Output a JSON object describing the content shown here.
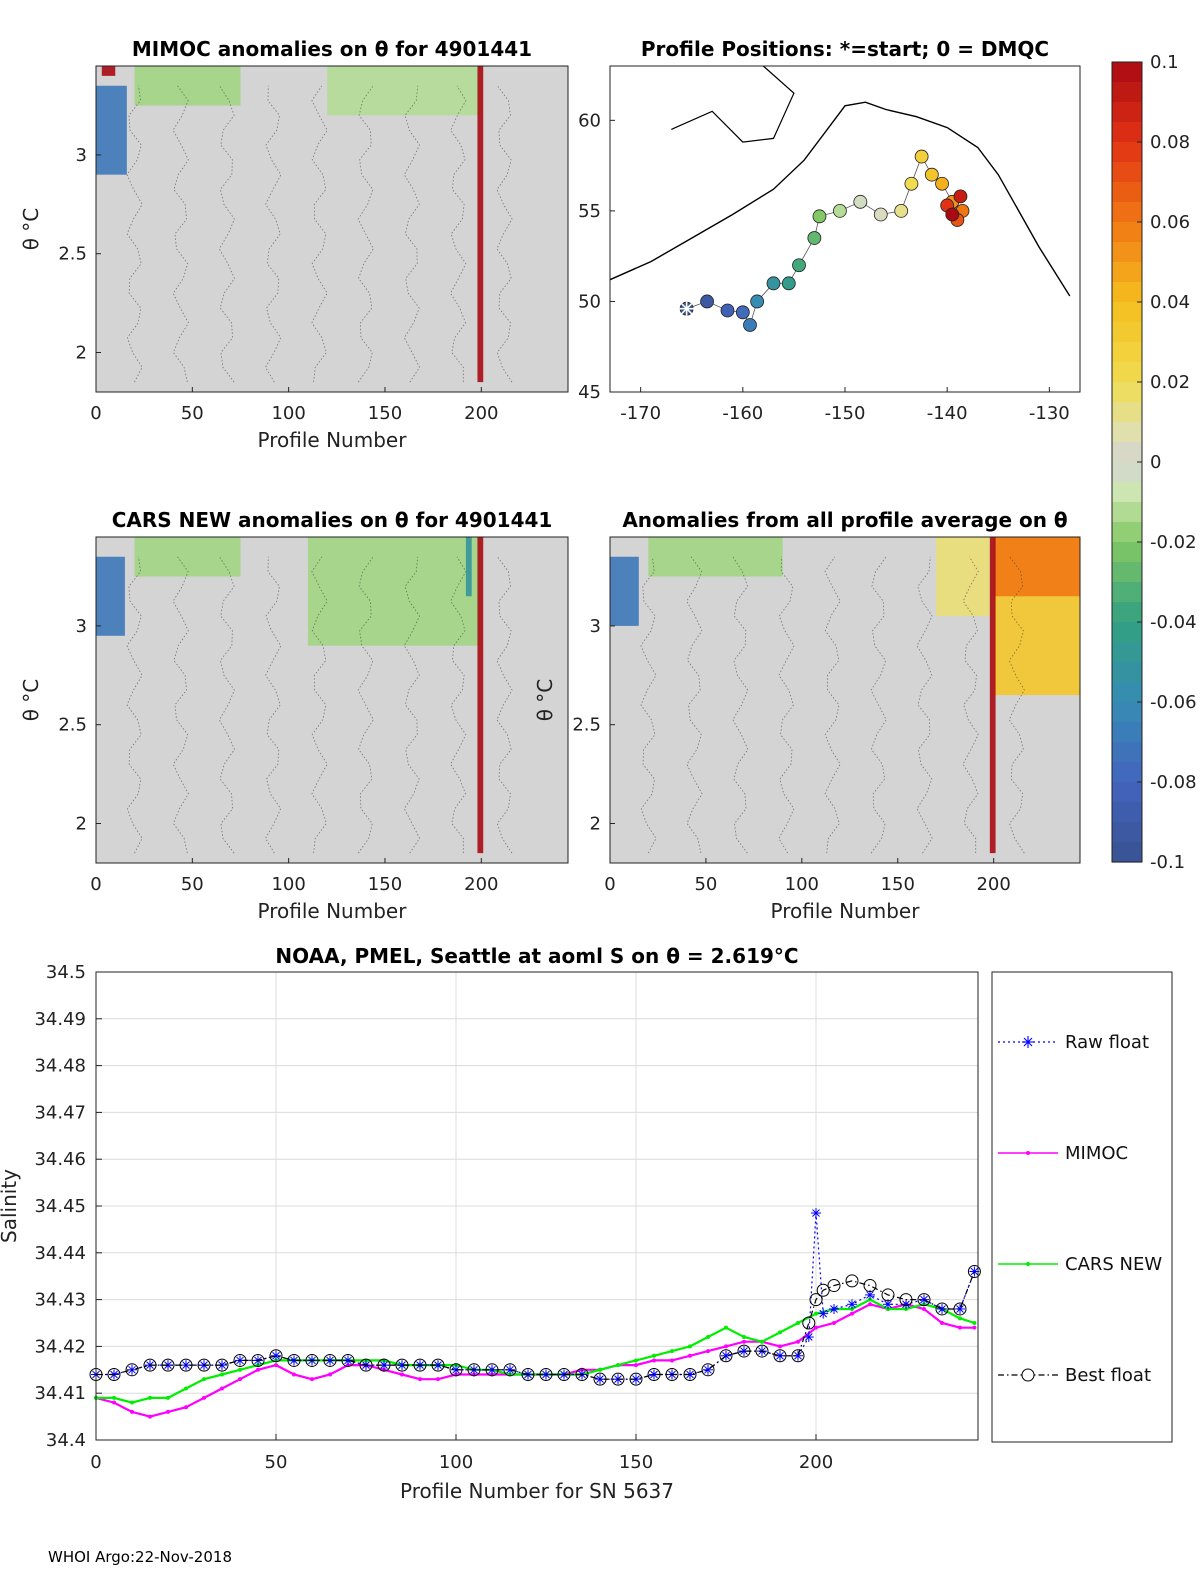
{
  "footer": "WHOI Argo:22-Nov-2018",
  "chart_data": [
    {
      "id": "mimoc",
      "type": "heatmap",
      "title": "MIMOC anomalies on θ  for 4901441",
      "xlabel": "Profile Number",
      "ylabel": "θ °C",
      "xlim": [
        0,
        245
      ],
      "ylim": [
        1.8,
        3.45
      ],
      "xticks": [
        "0",
        "50",
        "100",
        "150",
        "200"
      ],
      "xtick_values": [
        0,
        50,
        100,
        150,
        200
      ],
      "yticks": [
        "2",
        "2.5",
        "3"
      ],
      "ytick_values": [
        2,
        2.5,
        3
      ],
      "background_value": 0,
      "features": [
        {
          "x0": 0,
          "x1": 16,
          "y0": 2.9,
          "y1": 3.35,
          "value": -0.07
        },
        {
          "x0": 20,
          "x1": 75,
          "y0": 3.25,
          "y1": 3.45,
          "value": -0.015
        },
        {
          "x0": 120,
          "x1": 200,
          "y0": 3.2,
          "y1": 3.45,
          "value": -0.012
        },
        {
          "x0": 198,
          "x1": 201,
          "y0": 1.85,
          "y1": 3.45,
          "value": 0.1
        },
        {
          "x0": 3,
          "x1": 10,
          "y0": 3.4,
          "y1": 3.45,
          "value": 0.1
        }
      ]
    },
    {
      "id": "positions",
      "type": "scatter",
      "title": "Profile Positions: *=start; 0 = DMQC",
      "xlim": [
        -173,
        -127
      ],
      "ylim": [
        45,
        63
      ],
      "xticks": [
        "-170",
        "-160",
        "-150",
        "-140",
        "-130"
      ],
      "xtick_values": [
        -170,
        -160,
        -150,
        -140,
        -130
      ],
      "yticks": [
        "45",
        "50",
        "55",
        "60"
      ],
      "ytick_values": [
        45,
        50,
        55,
        60
      ],
      "start": {
        "lon": -165.5,
        "lat": 49.6
      },
      "track": [
        {
          "lon": -165.5,
          "lat": 49.6,
          "v": -0.1
        },
        {
          "lon": -163.5,
          "lat": 50.0,
          "v": -0.092
        },
        {
          "lon": -161.5,
          "lat": 49.5,
          "v": -0.084
        },
        {
          "lon": -160.0,
          "lat": 49.4,
          "v": -0.076
        },
        {
          "lon": -159.3,
          "lat": 48.7,
          "v": -0.068
        },
        {
          "lon": -158.6,
          "lat": 50.0,
          "v": -0.06
        },
        {
          "lon": -157.0,
          "lat": 51.0,
          "v": -0.052
        },
        {
          "lon": -155.5,
          "lat": 51.0,
          "v": -0.044
        },
        {
          "lon": -154.5,
          "lat": 52.0,
          "v": -0.036
        },
        {
          "lon": -153.0,
          "lat": 53.5,
          "v": -0.028
        },
        {
          "lon": -152.5,
          "lat": 54.7,
          "v": -0.02
        },
        {
          "lon": -150.5,
          "lat": 55.0,
          "v": -0.012
        },
        {
          "lon": -148.5,
          "lat": 55.5,
          "v": -0.004
        },
        {
          "lon": -146.5,
          "lat": 54.8,
          "v": 0.004
        },
        {
          "lon": -144.5,
          "lat": 55.0,
          "v": 0.012
        },
        {
          "lon": -143.5,
          "lat": 56.5,
          "v": 0.02
        },
        {
          "lon": -142.5,
          "lat": 58.0,
          "v": 0.028
        },
        {
          "lon": -141.5,
          "lat": 57.0,
          "v": 0.036
        },
        {
          "lon": -140.5,
          "lat": 56.5,
          "v": 0.044
        },
        {
          "lon": -139.5,
          "lat": 55.5,
          "v": 0.052
        },
        {
          "lon": -138.5,
          "lat": 55.0,
          "v": 0.06
        },
        {
          "lon": -139.0,
          "lat": 54.5,
          "v": 0.07
        },
        {
          "lon": -140.0,
          "lat": 55.3,
          "v": 0.08
        },
        {
          "lon": -138.7,
          "lat": 55.8,
          "v": 0.09
        },
        {
          "lon": -139.5,
          "lat": 54.8,
          "v": 0.1
        }
      ]
    },
    {
      "id": "cars",
      "type": "heatmap",
      "title": "CARS NEW anomalies on θ for 4901441",
      "xlabel": "Profile Number",
      "ylabel": "θ °C",
      "xlim": [
        0,
        245
      ],
      "ylim": [
        1.8,
        3.45
      ],
      "xticks": [
        "0",
        "50",
        "100",
        "150",
        "200"
      ],
      "xtick_values": [
        0,
        50,
        100,
        150,
        200
      ],
      "yticks": [
        "2",
        "2.5",
        "3"
      ],
      "ytick_values": [
        2,
        2.5,
        3
      ],
      "background_value": 0,
      "features": [
        {
          "x0": 0,
          "x1": 15,
          "y0": 2.95,
          "y1": 3.35,
          "value": -0.07
        },
        {
          "x0": 20,
          "x1": 75,
          "y0": 3.25,
          "y1": 3.45,
          "value": -0.015
        },
        {
          "x0": 110,
          "x1": 200,
          "y0": 2.9,
          "y1": 3.45,
          "value": -0.015
        },
        {
          "x0": 192,
          "x1": 195,
          "y0": 3.15,
          "y1": 3.45,
          "value": -0.05
        },
        {
          "x0": 198,
          "x1": 201,
          "y0": 1.85,
          "y1": 3.45,
          "value": 0.1
        }
      ]
    },
    {
      "id": "allavg",
      "type": "heatmap",
      "title": "Anomalies from all profile average on θ",
      "xlabel": "Profile Number",
      "ylabel": "θ °C",
      "xlim": [
        0,
        245
      ],
      "ylim": [
        1.8,
        3.45
      ],
      "xticks": [
        "0",
        "50",
        "100",
        "150",
        "200"
      ],
      "xtick_values": [
        0,
        50,
        100,
        150,
        200
      ],
      "yticks": [
        "2",
        "2.5",
        "3"
      ],
      "ytick_values": [
        2,
        2.5,
        3
      ],
      "background_value": 0,
      "features": [
        {
          "x0": 0,
          "x1": 15,
          "y0": 3.0,
          "y1": 3.35,
          "value": -0.07
        },
        {
          "x0": 20,
          "x1": 90,
          "y0": 3.25,
          "y1": 3.45,
          "value": -0.015
        },
        {
          "x0": 170,
          "x1": 198,
          "y0": 3.05,
          "y1": 3.45,
          "value": 0.015
        },
        {
          "x0": 200,
          "x1": 245,
          "y0": 2.65,
          "y1": 3.45,
          "value": 0.035
        },
        {
          "x0": 200,
          "x1": 245,
          "y0": 3.15,
          "y1": 3.45,
          "value": 0.06
        },
        {
          "x0": 198,
          "x1": 201,
          "y0": 1.85,
          "y1": 3.45,
          "value": 0.1
        }
      ]
    },
    {
      "id": "colorbar",
      "type": "colorbar",
      "limits": [
        -0.1,
        0.1
      ],
      "ticks": [
        "-0.1",
        "-0.08",
        "-0.06",
        "-0.04",
        "-0.02",
        "0",
        "0.02",
        "0.04",
        "0.06",
        "0.08",
        "0.1"
      ],
      "tick_values": [
        -0.1,
        -0.08,
        -0.06,
        -0.04,
        -0.02,
        0,
        0.02,
        0.04,
        0.06,
        0.08,
        0.1
      ]
    },
    {
      "id": "salinity",
      "type": "line",
      "title": "NOAA, PMEL, Seattle at aoml S on θ = 2.619°C",
      "xlabel": "Profile Number for SN 5637",
      "ylabel": "Salinity",
      "xlim": [
        0,
        245
      ],
      "ylim": [
        34.4,
        34.5
      ],
      "grid": true,
      "legend_position": "right outside",
      "xticks": [
        "0",
        "50",
        "100",
        "150",
        "200"
      ],
      "xtick_values": [
        0,
        50,
        100,
        150,
        200
      ],
      "yticks": [
        "34.4",
        "34.41",
        "34.42",
        "34.43",
        "34.44",
        "34.45",
        "34.46",
        "34.47",
        "34.48",
        "34.49",
        "34.5"
      ],
      "ytick_values": [
        34.4,
        34.41,
        34.42,
        34.43,
        34.44,
        34.45,
        34.46,
        34.47,
        34.48,
        34.49,
        34.5
      ],
      "series": [
        {
          "name": "Raw float",
          "color": "#0000ff",
          "x": [
            0,
            5,
            10,
            15,
            20,
            25,
            30,
            35,
            40,
            45,
            50,
            55,
            60,
            65,
            70,
            75,
            80,
            85,
            90,
            95,
            100,
            105,
            110,
            115,
            120,
            125,
            130,
            135,
            140,
            145,
            150,
            155,
            160,
            165,
            170,
            175,
            180,
            185,
            190,
            195,
            198,
            200,
            202,
            205,
            210,
            215,
            220,
            225,
            230,
            235,
            240,
            244
          ],
          "values": [
            34.414,
            34.414,
            34.415,
            34.416,
            34.416,
            34.416,
            34.416,
            34.416,
            34.417,
            34.417,
            34.418,
            34.417,
            34.417,
            34.417,
            34.417,
            34.416,
            34.416,
            34.416,
            34.416,
            34.416,
            34.415,
            34.415,
            34.415,
            34.415,
            34.414,
            34.414,
            34.414,
            34.414,
            34.413,
            34.413,
            34.413,
            34.414,
            34.414,
            34.414,
            34.415,
            34.418,
            34.419,
            34.419,
            34.418,
            34.418,
            34.422,
            34.4485,
            34.427,
            34.428,
            34.429,
            34.431,
            34.429,
            34.429,
            34.43,
            34.428,
            34.428,
            34.436
          ]
        },
        {
          "name": "MIMOC",
          "color": "#ff00ff",
          "x": [
            0,
            5,
            10,
            15,
            20,
            25,
            30,
            35,
            40,
            45,
            50,
            55,
            60,
            65,
            70,
            75,
            80,
            85,
            90,
            95,
            100,
            105,
            110,
            115,
            120,
            125,
            130,
            135,
            140,
            145,
            150,
            155,
            160,
            165,
            170,
            175,
            180,
            185,
            190,
            195,
            200,
            205,
            210,
            215,
            220,
            225,
            230,
            235,
            240,
            244
          ],
          "values": [
            34.409,
            34.408,
            34.406,
            34.405,
            34.406,
            34.407,
            34.409,
            34.411,
            34.413,
            34.415,
            34.416,
            34.414,
            34.413,
            34.414,
            34.416,
            34.416,
            34.415,
            34.414,
            34.413,
            34.413,
            34.414,
            34.414,
            34.414,
            34.414,
            34.414,
            34.414,
            34.414,
            34.415,
            34.415,
            34.416,
            34.416,
            34.417,
            34.417,
            34.418,
            34.419,
            34.42,
            34.421,
            34.421,
            34.42,
            34.421,
            34.424,
            34.425,
            34.427,
            34.429,
            34.428,
            34.429,
            34.428,
            34.425,
            34.424,
            34.424
          ]
        },
        {
          "name": "CARS NEW",
          "color": "#00ee00",
          "x": [
            0,
            5,
            10,
            15,
            20,
            25,
            30,
            35,
            40,
            45,
            50,
            55,
            60,
            65,
            70,
            75,
            80,
            85,
            90,
            95,
            100,
            105,
            110,
            115,
            120,
            125,
            130,
            135,
            140,
            145,
            150,
            155,
            160,
            165,
            170,
            175,
            180,
            185,
            190,
            195,
            200,
            205,
            210,
            215,
            220,
            225,
            230,
            235,
            240,
            244
          ],
          "values": [
            34.409,
            34.409,
            34.408,
            34.409,
            34.409,
            34.411,
            34.413,
            34.414,
            34.415,
            34.416,
            34.417,
            34.417,
            34.417,
            34.417,
            34.417,
            34.417,
            34.417,
            34.416,
            34.416,
            34.416,
            34.416,
            34.415,
            34.415,
            34.414,
            34.414,
            34.414,
            34.414,
            34.414,
            34.415,
            34.416,
            34.417,
            34.418,
            34.419,
            34.42,
            34.422,
            34.424,
            34.422,
            34.421,
            34.423,
            34.425,
            34.427,
            34.428,
            34.428,
            34.43,
            34.428,
            34.428,
            34.429,
            34.428,
            34.426,
            34.425
          ]
        },
        {
          "name": "Best float",
          "color": "#000000",
          "x": [
            0,
            5,
            10,
            15,
            20,
            25,
            30,
            35,
            40,
            45,
            50,
            55,
            60,
            65,
            70,
            75,
            80,
            85,
            90,
            95,
            100,
            105,
            110,
            115,
            120,
            125,
            130,
            135,
            140,
            145,
            150,
            155,
            160,
            165,
            170,
            175,
            180,
            185,
            190,
            195,
            198,
            200,
            202,
            205,
            210,
            215,
            220,
            225,
            230,
            235,
            240,
            244
          ],
          "values": [
            34.414,
            34.414,
            34.415,
            34.416,
            34.416,
            34.416,
            34.416,
            34.416,
            34.417,
            34.417,
            34.418,
            34.417,
            34.417,
            34.417,
            34.417,
            34.416,
            34.416,
            34.416,
            34.416,
            34.416,
            34.415,
            34.415,
            34.415,
            34.415,
            34.414,
            34.414,
            34.414,
            34.414,
            34.413,
            34.413,
            34.413,
            34.414,
            34.414,
            34.414,
            34.415,
            34.418,
            34.419,
            34.419,
            34.418,
            34.418,
            34.425,
            34.43,
            34.432,
            34.433,
            34.434,
            34.433,
            34.431,
            34.43,
            34.43,
            34.428,
            34.428,
            34.436
          ]
        }
      ]
    }
  ]
}
